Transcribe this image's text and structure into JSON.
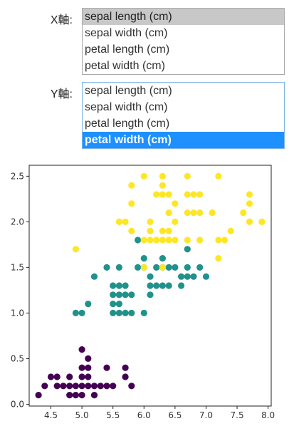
{
  "x_axis": {
    "label": "X軸:",
    "options": [
      "sepal length (cm)",
      "sepal width (cm)",
      "petal length (cm)",
      "petal width (cm)"
    ],
    "selected": "sepal length (cm)"
  },
  "y_axis": {
    "label": "Y軸:",
    "options": [
      "sepal length (cm)",
      "sepal width (cm)",
      "petal length (cm)",
      "petal width (cm)"
    ],
    "selected": "petal width (cm)"
  },
  "chart_data": {
    "type": "scatter",
    "title": "",
    "xlabel": "",
    "ylabel": "",
    "xlim": [
      4.15,
      8.05
    ],
    "ylim": [
      -0.02,
      2.62
    ],
    "xticks": [
      4.5,
      5.0,
      5.5,
      6.0,
      6.5,
      7.0,
      7.5,
      8.0
    ],
    "xtick_labels": [
      "4.5",
      "5.0",
      "5.5",
      "6.0",
      "6.5",
      "7.0",
      "7.5",
      "8.0"
    ],
    "yticks": [
      0.0,
      0.5,
      1.0,
      1.5,
      2.0,
      2.5
    ],
    "ytick_labels": [
      "0.0",
      "0.5",
      "1.0",
      "1.5",
      "2.0",
      "2.5"
    ],
    "grid": false,
    "series": [
      {
        "color": "#440154",
        "points": [
          [
            4.3,
            0.1
          ],
          [
            4.4,
            0.2
          ],
          [
            4.5,
            0.3
          ],
          [
            4.6,
            0.3
          ],
          [
            4.6,
            0.2
          ],
          [
            4.7,
            0.2
          ],
          [
            4.8,
            0.1
          ],
          [
            4.8,
            0.3
          ],
          [
            4.8,
            0.2
          ],
          [
            4.9,
            0.1
          ],
          [
            4.9,
            0.2
          ],
          [
            5.0,
            0.2
          ],
          [
            5.0,
            0.3
          ],
          [
            5.0,
            0.4
          ],
          [
            5.0,
            0.6
          ],
          [
            5.0,
            0.1
          ],
          [
            5.1,
            0.2
          ],
          [
            5.1,
            0.3
          ],
          [
            5.1,
            0.4
          ],
          [
            5.1,
            0.5
          ],
          [
            5.2,
            0.1
          ],
          [
            5.2,
            0.2
          ],
          [
            5.3,
            0.2
          ],
          [
            5.4,
            0.2
          ],
          [
            5.4,
            0.4
          ],
          [
            5.5,
            0.2
          ],
          [
            5.7,
            0.3
          ],
          [
            5.7,
            0.4
          ],
          [
            5.8,
            0.2
          ]
        ]
      },
      {
        "color": "#21918c",
        "points": [
          [
            4.9,
            1.0
          ],
          [
            5.0,
            1.0
          ],
          [
            5.1,
            1.1
          ],
          [
            5.2,
            1.4
          ],
          [
            5.4,
            1.5
          ],
          [
            5.5,
            1.0
          ],
          [
            5.5,
            1.1
          ],
          [
            5.5,
            1.2
          ],
          [
            5.5,
            1.3
          ],
          [
            5.6,
            1.0
          ],
          [
            5.6,
            1.1
          ],
          [
            5.6,
            1.2
          ],
          [
            5.6,
            1.3
          ],
          [
            5.6,
            1.5
          ],
          [
            5.7,
            1.0
          ],
          [
            5.7,
            1.2
          ],
          [
            5.7,
            1.3
          ],
          [
            5.8,
            1.0
          ],
          [
            5.8,
            1.2
          ],
          [
            5.9,
            1.5
          ],
          [
            5.9,
            1.8
          ],
          [
            6.0,
            1.0
          ],
          [
            6.0,
            1.5
          ],
          [
            6.0,
            1.6
          ],
          [
            6.1,
            1.2
          ],
          [
            6.1,
            1.3
          ],
          [
            6.1,
            1.4
          ],
          [
            6.2,
            1.3
          ],
          [
            6.2,
            1.5
          ],
          [
            6.3,
            1.3
          ],
          [
            6.3,
            1.5
          ],
          [
            6.3,
            1.6
          ],
          [
            6.4,
            1.3
          ],
          [
            6.4,
            1.5
          ],
          [
            6.5,
            1.5
          ],
          [
            6.6,
            1.3
          ],
          [
            6.6,
            1.4
          ],
          [
            6.7,
            1.4
          ],
          [
            6.7,
            1.5
          ],
          [
            6.7,
            1.7
          ],
          [
            6.8,
            1.4
          ],
          [
            6.9,
            1.5
          ],
          [
            7.0,
            1.4
          ]
        ]
      },
      {
        "color": "#fde725",
        "points": [
          [
            4.9,
            1.7
          ],
          [
            5.6,
            2.0
          ],
          [
            5.7,
            2.0
          ],
          [
            5.8,
            1.9
          ],
          [
            5.8,
            2.4
          ],
          [
            5.8,
            2.2
          ],
          [
            6.0,
            1.8
          ],
          [
            6.0,
            2.5
          ],
          [
            6.1,
            1.8
          ],
          [
            6.1,
            1.9
          ],
          [
            6.2,
            1.8
          ],
          [
            6.3,
            1.8
          ],
          [
            6.3,
            1.9
          ],
          [
            6.3,
            2.5
          ],
          [
            6.3,
            2.4
          ],
          [
            6.4,
            1.8
          ],
          [
            6.4,
            2.1
          ],
          [
            6.4,
            2.3
          ],
          [
            6.5,
            2.0
          ],
          [
            6.5,
            2.2
          ],
          [
            6.7,
            1.8
          ],
          [
            6.7,
            2.1
          ],
          [
            6.7,
            2.3
          ],
          [
            6.7,
            2.5
          ],
          [
            6.8,
            2.1
          ],
          [
            6.8,
            2.3
          ],
          [
            6.9,
            2.1
          ],
          [
            6.9,
            2.3
          ],
          [
            7.1,
            2.1
          ],
          [
            7.2,
            1.6
          ],
          [
            7.2,
            1.8
          ],
          [
            7.2,
            2.5
          ],
          [
            7.3,
            1.8
          ],
          [
            7.4,
            1.9
          ],
          [
            7.6,
            2.1
          ],
          [
            7.7,
            2.0
          ],
          [
            7.7,
            2.2
          ],
          [
            7.7,
            2.3
          ],
          [
            7.9,
            2.0
          ],
          [
            6.3,
            1.5
          ],
          [
            6.0,
            1.5
          ],
          [
            6.1,
            2.0
          ],
          [
            6.5,
            1.8
          ],
          [
            6.4,
            1.9
          ],
          [
            6.3,
            2.3
          ],
          [
            6.2,
            2.3
          ],
          [
            6.9,
            1.8
          ]
        ]
      }
    ]
  }
}
